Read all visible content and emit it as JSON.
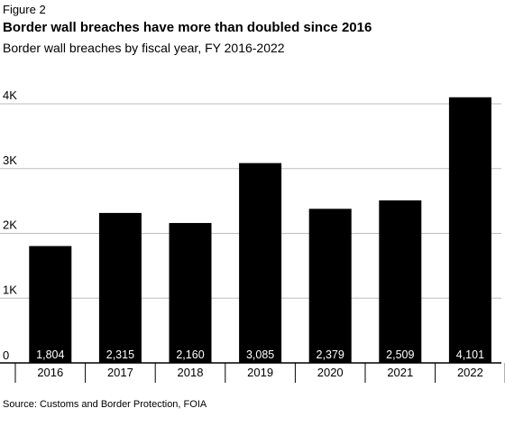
{
  "figure_label": "Figure 2",
  "title": "Border wall breaches have more than doubled since 2016",
  "subtitle": "Border wall breaches by fiscal year, FY 2016-2022",
  "source": "Source: Customs and Border Protection, FOIA",
  "colors": {
    "bar": "#000000",
    "bar_label": "#ffffff",
    "grid": "#bdbdbd",
    "axis": "#000000",
    "text": "#000000"
  },
  "chart_data": {
    "type": "bar",
    "categories": [
      "2016",
      "2017",
      "2018",
      "2019",
      "2020",
      "2021",
      "2022"
    ],
    "values": [
      1804,
      2315,
      2160,
      3085,
      2379,
      2509,
      4101
    ],
    "value_labels": [
      "1,804",
      "2,315",
      "2,160",
      "3,085",
      "2,379",
      "2,509",
      "4,101"
    ],
    "yticks": [
      0,
      1000,
      2000,
      3000,
      4000
    ],
    "ytick_labels": [
      "0",
      "1K",
      "2K",
      "3K",
      "4K"
    ],
    "ylim": [
      0,
      4000
    ],
    "grid": true,
    "xlabel": "",
    "ylabel": ""
  }
}
